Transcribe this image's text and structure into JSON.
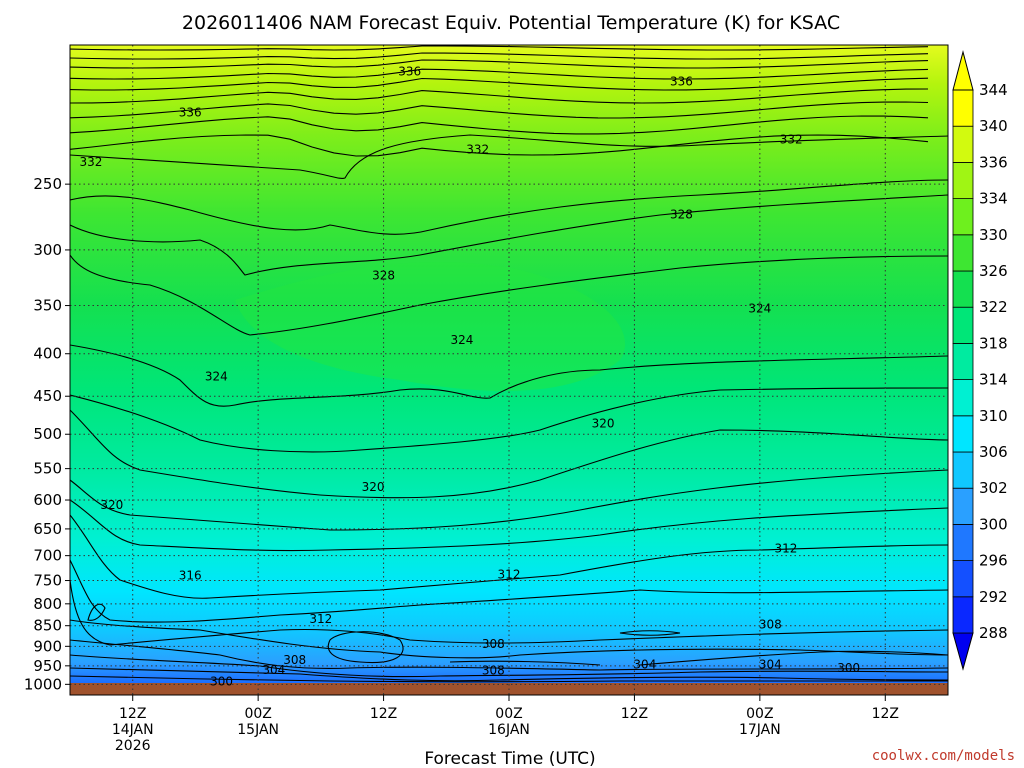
{
  "colors": {
    "credit": "#c0392b",
    "ground": "#a0522d",
    "contour": "#000000",
    "grid": "#333333"
  },
  "chart_data": {
    "type": "heatmap",
    "title": "2026011406 NAM Forecast Equiv. Potential Temperature (K) for KSAC",
    "xlabel": "Forecast Time (UTC)",
    "ylabel": "",
    "credit": "coolwx.com/models",
    "y_scale": "log",
    "y_inverted": true,
    "ylim": [
      1030,
      170
    ],
    "y_ticks": [
      250,
      300,
      350,
      400,
      450,
      500,
      550,
      600,
      650,
      700,
      750,
      800,
      850,
      900,
      950,
      1000
    ],
    "xlim": [
      6,
      90
    ],
    "x_ticks": [
      {
        "hour": 12,
        "lines": [
          "12Z",
          "14JAN",
          "2026"
        ]
      },
      {
        "hour": 24,
        "lines": [
          "00Z",
          "15JAN"
        ]
      },
      {
        "hour": 36,
        "lines": [
          "12Z"
        ]
      },
      {
        "hour": 48,
        "lines": [
          "00Z",
          "16JAN"
        ]
      },
      {
        "hour": 60,
        "lines": [
          "12Z"
        ]
      },
      {
        "hour": 72,
        "lines": [
          "00Z",
          "17JAN"
        ]
      },
      {
        "hour": 84,
        "lines": [
          "12Z"
        ]
      }
    ],
    "grid": true,
    "colorbar": {
      "levels": [
        288,
        292,
        296,
        300,
        302,
        306,
        310,
        314,
        318,
        322,
        326,
        330,
        334,
        336,
        340,
        344
      ],
      "colors": [
        "#0000f0",
        "#0a28ff",
        "#1450ff",
        "#1f78ff",
        "#2aa0ff",
        "#10c8ff",
        "#00e6ff",
        "#00f0d2",
        "#00eba0",
        "#00e678",
        "#14e050",
        "#3ee632",
        "#6ef01e",
        "#a0f514",
        "#d2fa0f",
        "#ffff00"
      ],
      "extend": "both",
      "placement": "right"
    },
    "contour_labels": [
      {
        "text": "336",
        "hour": 38.5,
        "p": 183
      },
      {
        "text": "336",
        "hour": 17.5,
        "p": 205
      },
      {
        "text": "336",
        "hour": 64.5,
        "p": 188
      },
      {
        "text": "332",
        "hour": 8,
        "p": 235
      },
      {
        "text": "332",
        "hour": 45,
        "p": 227
      },
      {
        "text": "332",
        "hour": 75,
        "p": 221
      },
      {
        "text": "328",
        "hour": 64.5,
        "p": 272
      },
      {
        "text": "328",
        "hour": 36,
        "p": 322
      },
      {
        "text": "324",
        "hour": 72,
        "p": 353
      },
      {
        "text": "324",
        "hour": 43.5,
        "p": 385
      },
      {
        "text": "324",
        "hour": 20,
        "p": 426
      },
      {
        "text": "320",
        "hour": 57,
        "p": 485
      },
      {
        "text": "320",
        "hour": 35,
        "p": 579
      },
      {
        "text": "320",
        "hour": 10,
        "p": 608
      },
      {
        "text": "312",
        "hour": 74.5,
        "p": 686
      },
      {
        "text": "312",
        "hour": 48,
        "p": 738
      },
      {
        "text": "316",
        "hour": 17.5,
        "p": 740
      },
      {
        "text": "312",
        "hour": 30,
        "p": 834
      },
      {
        "text": "308",
        "hour": 73,
        "p": 847
      },
      {
        "text": "308",
        "hour": 46.5,
        "p": 894
      },
      {
        "text": "308",
        "hour": 27.5,
        "p": 935
      },
      {
        "text": "304",
        "hour": 25.5,
        "p": 961
      },
      {
        "text": "308",
        "hour": 46.5,
        "p": 963
      },
      {
        "text": "304",
        "hour": 61,
        "p": 946
      },
      {
        "text": "304",
        "hour": 73,
        "p": 946
      },
      {
        "text": "300",
        "hour": 80.5,
        "p": 956
      },
      {
        "text": "300",
        "hour": 20.5,
        "p": 992
      }
    ]
  }
}
